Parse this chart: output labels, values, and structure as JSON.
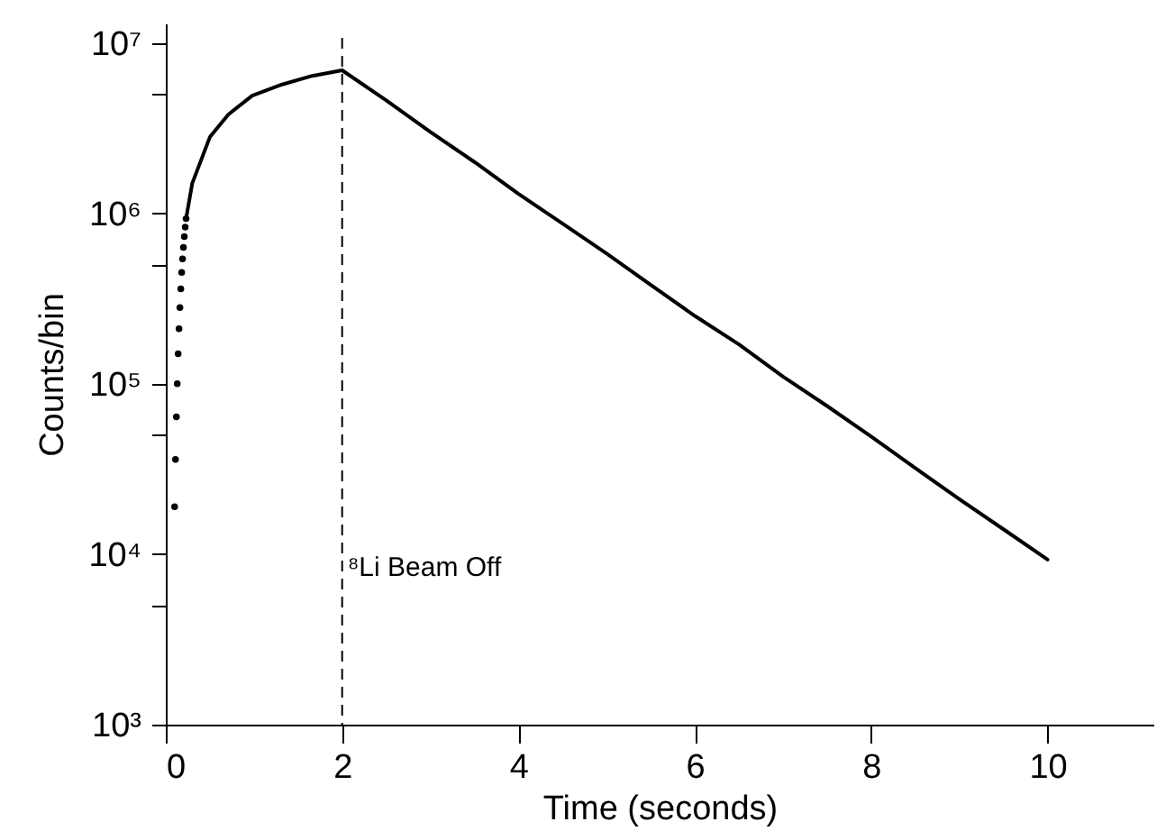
{
  "chart_data": {
    "type": "scatter",
    "xlabel": "Time (seconds)",
    "ylabel": "Counts/bin",
    "log": "y",
    "xlim": [
      0,
      11.2
    ],
    "xticks": [
      0,
      2,
      4,
      6,
      8,
      10
    ],
    "ylim": [
      1000,
      13000000
    ],
    "yticks": [
      {
        "value": 1000,
        "label": "10³"
      },
      {
        "value": 5000,
        "label": null
      },
      {
        "value": 10000,
        "label": "10⁴"
      },
      {
        "value": 50000,
        "label": null
      },
      {
        "value": 100000,
        "label": "10⁵"
      },
      {
        "value": 500000,
        "label": null
      },
      {
        "value": 1000000,
        "label": "10⁶"
      },
      {
        "value": 5000000,
        "label": null
      },
      {
        "value": 10000000,
        "label": "10⁷"
      }
    ],
    "ref_lines": [
      {
        "axis": "x",
        "value": 2,
        "label": "⁸Li Beam Off",
        "line_style": "dashed",
        "color": "#000000"
      }
    ],
    "series": [
      {
        "marker": "circle",
        "color": "#000000",
        "x": [
          0.1,
          0.11,
          0.12,
          0.13,
          0.14,
          0.15,
          0.16,
          0.17,
          0.18,
          0.19,
          0.2,
          0.21,
          0.22,
          0.23
        ],
        "values": [
          19000,
          36000,
          64000,
          100000,
          150000,
          210000,
          280000,
          360000,
          450000,
          540000,
          630000,
          730000,
          830000,
          930000
        ]
      },
      {
        "type": "line",
        "marker": "none",
        "line_style": "solid",
        "color": "#000000",
        "x": [
          0.23,
          0.3,
          0.5,
          0.71,
          0.98,
          1.32,
          1.66,
          2.0,
          2.5,
          3.0,
          3.5,
          4.0,
          4.5,
          5.0,
          5.5,
          6.0,
          6.5,
          7.0,
          7.5,
          8.0,
          8.5,
          9.0,
          9.5,
          10.0
        ],
        "values": [
          930000,
          1500000,
          2800000,
          3800000,
          4900000,
          5700000,
          6400000,
          6900000,
          4600000,
          3000000,
          2000000,
          1300000,
          870000,
          580000,
          380000,
          250000,
          170000,
          110000,
          74000,
          49000,
          32000,
          21000,
          14000,
          9300
        ]
      }
    ]
  }
}
